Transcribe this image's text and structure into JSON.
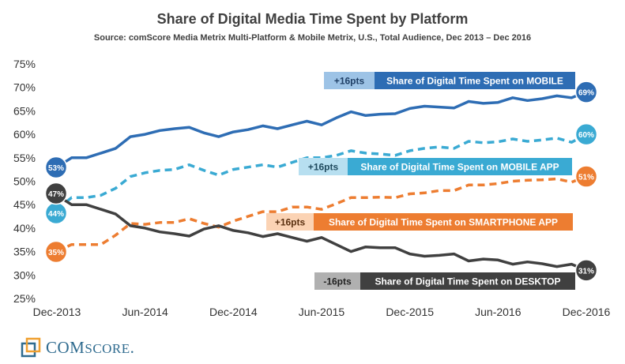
{
  "chart_data": {
    "type": "line",
    "title": "Share of Digital Media Time Spent by Platform",
    "subtitle": "Source: comScore Media Metrix Multi-Platform & Mobile Metrix, U.S., Total Audience, Dec 2013 – Dec 2016",
    "x_tick_labels": [
      "Dec-2013",
      "Jun-2014",
      "Dec-2014",
      "Jun-2015",
      "Dec-2015",
      "Jun-2016",
      "Dec-2016"
    ],
    "y_tick_labels": [
      "25%",
      "30%",
      "35%",
      "40%",
      "45%",
      "50%",
      "55%",
      "60%",
      "65%",
      "70%",
      "75%"
    ],
    "ylim": [
      25,
      75
    ],
    "x_range_months": [
      0,
      36
    ],
    "series": [
      {
        "key": "mobile",
        "color": "#2e6db4",
        "dashed": false,
        "start_label": "53%",
        "end_label": "69%",
        "change_label": "+16pts",
        "change_color": "#9dc3e6",
        "change_text_color": "#1f3f66",
        "name_label": "Share of Digital Time Spent on MOBILE",
        "values": [
          53,
          55,
          55,
          56,
          57,
          59.5,
          60,
          60.8,
          61.2,
          61.5,
          60.3,
          59.5,
          60.5,
          61,
          61.8,
          61.2,
          62,
          62.8,
          62,
          63.5,
          64.8,
          64,
          64.3,
          64.4,
          65.5,
          66,
          65.8,
          65.6,
          67,
          66.6,
          66.8,
          67.8,
          67.2,
          67.6,
          68.2,
          67.8,
          69
        ]
      },
      {
        "key": "mobile_app",
        "color": "#3aaad3",
        "dashed": true,
        "start_label": "44%",
        "end_label": "60%",
        "change_label": "+16pts",
        "change_color": "#b7dff0",
        "change_text_color": "#1f4a5e",
        "name_label": "Share of Digital Time Spent on MOBILE APP",
        "values": [
          44,
          46.5,
          46.5,
          47,
          48.5,
          51,
          51.8,
          52.3,
          52.5,
          53.5,
          52.3,
          51.3,
          52.5,
          53,
          53.5,
          53,
          54,
          55,
          55,
          55.5,
          56.5,
          56,
          55.8,
          55.5,
          56.5,
          57,
          57.3,
          57,
          58.5,
          58.2,
          58.4,
          59,
          58.5,
          58.8,
          59.2,
          58.3,
          60
        ]
      },
      {
        "key": "smartphone_app",
        "color": "#ed7d31",
        "dashed": true,
        "start_label": "35%",
        "end_label": "51%",
        "change_label": "+16pts",
        "change_color": "#fbd3b4",
        "change_text_color": "#5a3010",
        "name_label": "Share of Digital Time Spent on SMARTPHONE APP",
        "values": [
          35,
          36.5,
          36.5,
          36.5,
          38.5,
          41,
          40.8,
          41.2,
          41.2,
          42,
          41,
          40.2,
          41.5,
          42.5,
          43.5,
          43.5,
          44.5,
          44.5,
          44,
          45.2,
          46.5,
          46.5,
          46.6,
          46.5,
          47.3,
          47.5,
          48,
          48,
          49.2,
          49.2,
          49.5,
          50,
          50.2,
          50.3,
          50.5,
          49.8,
          51
        ]
      },
      {
        "key": "desktop",
        "color": "#404040",
        "dashed": false,
        "start_label": "47%",
        "end_label": "31%",
        "change_label": "-16pts",
        "change_color": "#b0b0b0",
        "change_text_color": "#222222",
        "name_label": "Share of Digital Time Spent on DESKTOP",
        "values": [
          47,
          45,
          45,
          44,
          43,
          40.5,
          40,
          39.2,
          38.8,
          38.3,
          39.8,
          40.5,
          39.5,
          39,
          38.2,
          38.8,
          38,
          37.2,
          38,
          36.5,
          35,
          36,
          35.8,
          35.8,
          34.5,
          34,
          34.2,
          34.5,
          33,
          33.4,
          33.2,
          32.3,
          32.8,
          32.4,
          31.8,
          32.3,
          31
        ]
      }
    ]
  },
  "logo": {
    "text_lead": "COM",
    "text_main": "SCORE",
    "text_suffix": "."
  }
}
